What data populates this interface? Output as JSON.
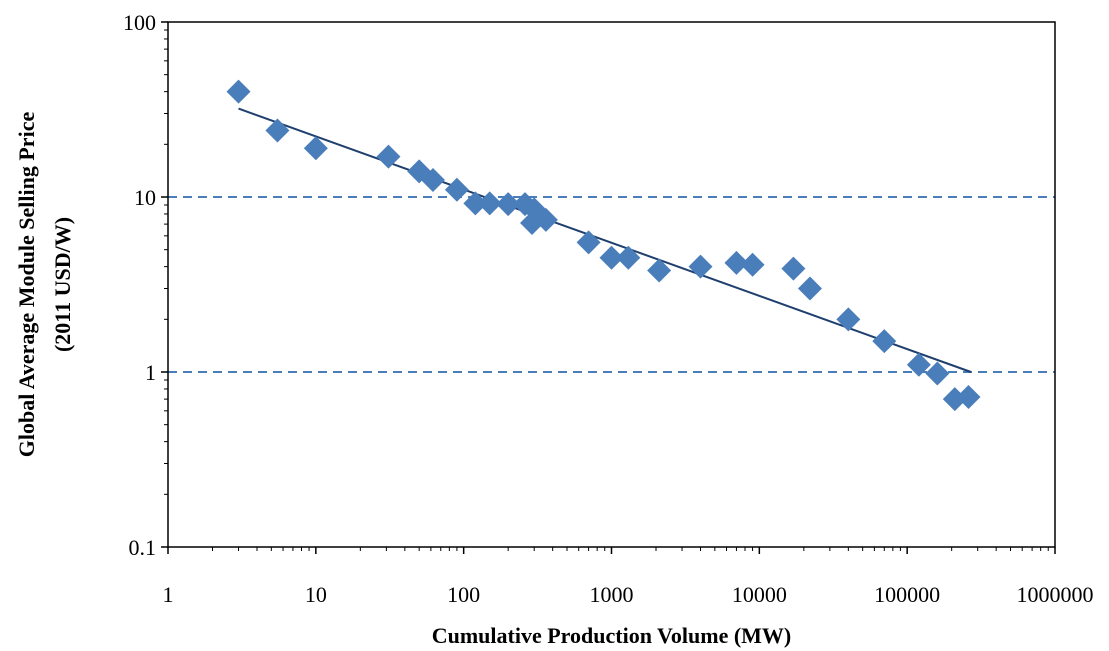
{
  "chart_data": {
    "type": "scatter",
    "title": "",
    "xlabel": "Cumulative Production Volume (MW)",
    "ylabel_line1": "Global Average Module Selling Price",
    "ylabel_line2": "(2011 USD/W)",
    "x_scale": "log",
    "y_scale": "log",
    "xlim": [
      1,
      1000000
    ],
    "ylim": [
      0.1,
      100
    ],
    "x_ticks": [
      "1",
      "10",
      "100",
      "1000",
      "10000",
      "100000",
      "1000000"
    ],
    "y_ticks": [
      "0.1",
      "1",
      "10",
      "100"
    ],
    "reference_lines_y": [
      1,
      10
    ],
    "grid": false,
    "legend": "none",
    "colors": {
      "marker": "#4a7ebb",
      "trend": "#1f3f6e",
      "reference": "#4a7ebb"
    },
    "series": [
      {
        "marker": "diamond",
        "points": [
          [
            3,
            40
          ],
          [
            5.5,
            24
          ],
          [
            10,
            19
          ],
          [
            31,
            17
          ],
          [
            50,
            14
          ],
          [
            62,
            12.5
          ],
          [
            90,
            11
          ],
          [
            120,
            9.2
          ],
          [
            150,
            9.2
          ],
          [
            200,
            9.1
          ],
          [
            260,
            9.1
          ],
          [
            300,
            8.5
          ],
          [
            290,
            7.1
          ],
          [
            360,
            7.4
          ],
          [
            700,
            5.5
          ],
          [
            1000,
            4.5
          ],
          [
            1300,
            4.5
          ],
          [
            2100,
            3.8
          ],
          [
            4000,
            4.0
          ],
          [
            7000,
            4.2
          ],
          [
            9000,
            4.1
          ],
          [
            17000,
            3.9
          ],
          [
            22000,
            3.0
          ],
          [
            40000,
            2.0
          ],
          [
            70000,
            1.5
          ],
          [
            120000,
            1.1
          ],
          [
            160000,
            0.98
          ],
          [
            210000,
            0.7
          ],
          [
            260000,
            0.72
          ]
        ]
      }
    ],
    "trendline": {
      "x": [
        3,
        270000
      ],
      "y": [
        32,
        1.0
      ]
    }
  }
}
